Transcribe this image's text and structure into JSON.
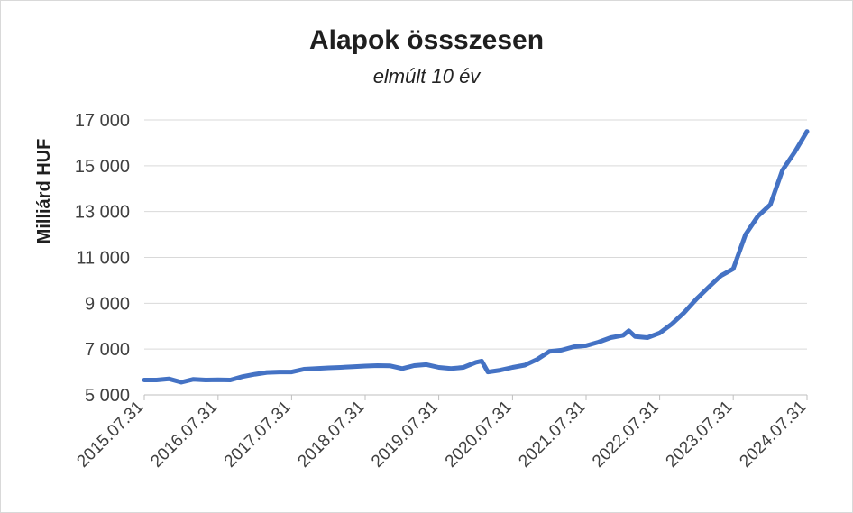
{
  "chart_data": {
    "type": "line",
    "title": "Alapok össszesen",
    "subtitle": "elmúlt 10 év",
    "xlabel": "",
    "ylabel": "Milliárd HUF",
    "ylim": [
      5000,
      17000
    ],
    "yticks": [
      5000,
      7000,
      9000,
      11000,
      13000,
      15000,
      17000
    ],
    "ytick_labels": [
      "5 000",
      "7 000",
      "9 000",
      "11 000",
      "13 000",
      "15 000",
      "17 000"
    ],
    "xticks": [
      "2015.07.31",
      "2016.07.31",
      "2017.07.31",
      "2018.07.31",
      "2019.07.31",
      "2020.07.31",
      "2021.07.31",
      "2022.07.31",
      "2023.07.31",
      "2024.07.31"
    ],
    "grid": true,
    "legend": "none",
    "color": "#4472c4",
    "series": [
      {
        "x": [
          "2015.07.31",
          "2015.09.30",
          "2015.11.30",
          "2016.01.31",
          "2016.03.31",
          "2016.05.31",
          "2016.07.31",
          "2016.09.30",
          "2016.11.30",
          "2017.01.31",
          "2017.03.31",
          "2017.05.31",
          "2017.07.31",
          "2017.09.30",
          "2017.11.30",
          "2018.01.31",
          "2018.03.31",
          "2018.05.31",
          "2018.07.31",
          "2018.09.30",
          "2018.11.30",
          "2019.01.31",
          "2019.03.31",
          "2019.05.31",
          "2019.07.31",
          "2019.09.30",
          "2019.11.30",
          "2020.01.31",
          "2020.02.29",
          "2020.03.31",
          "2020.05.31",
          "2020.07.31",
          "2020.09.30",
          "2020.11.30",
          "2021.01.31",
          "2021.03.31",
          "2021.05.31",
          "2021.07.31",
          "2021.09.30",
          "2021.11.30",
          "2022.01.31",
          "2022.02.28",
          "2022.03.31",
          "2022.05.31",
          "2022.07.31",
          "2022.09.30",
          "2022.11.30",
          "2023.01.31",
          "2023.03.31",
          "2023.05.31",
          "2023.07.31",
          "2023.09.30",
          "2023.11.30",
          "2024.01.31",
          "2024.03.31",
          "2024.05.31",
          "2024.07.31"
        ],
        "values": [
          5650,
          5650,
          5700,
          5550,
          5680,
          5650,
          5660,
          5650,
          5800,
          5900,
          5980,
          6000,
          6000,
          6120,
          6150,
          6180,
          6200,
          6230,
          6260,
          6280,
          6270,
          6150,
          6280,
          6320,
          6200,
          6150,
          6200,
          6420,
          6480,
          6000,
          6080,
          6200,
          6300,
          6550,
          6900,
          6950,
          7100,
          7150,
          7300,
          7500,
          7600,
          7800,
          7550,
          7500,
          7700,
          8100,
          8600,
          9200,
          9700,
          10200,
          10500,
          12000,
          12800,
          13300,
          14800,
          15600,
          16500
        ]
      }
    ]
  }
}
